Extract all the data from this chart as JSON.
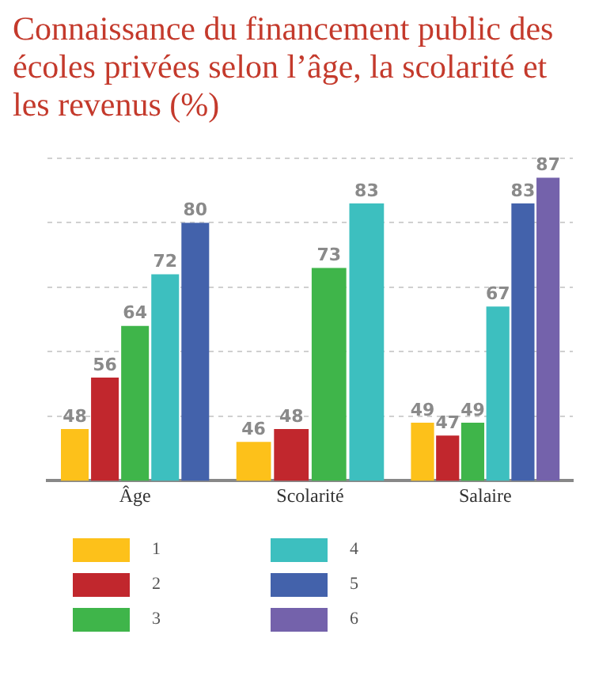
{
  "chart_data": {
    "type": "bar",
    "title": "Connaissance du financement public des écoles privées selon l’âge, la scolarité et les revenus (%)",
    "categories": [
      "Âge",
      "Scolarité",
      "Salaire"
    ],
    "series": [
      {
        "name": "1",
        "color": "#fdc11a",
        "values": [
          48,
          46,
          49
        ]
      },
      {
        "name": "2",
        "color": "#c1272d",
        "values": [
          56,
          48,
          47
        ]
      },
      {
        "name": "3",
        "color": "#3fb54a",
        "values": [
          64,
          73,
          49
        ]
      },
      {
        "name": "4",
        "color": "#3dbfbf",
        "values": [
          72,
          83,
          67
        ]
      },
      {
        "name": "5",
        "color": "#4362ab",
        "values": [
          80,
          null,
          83
        ]
      },
      {
        "name": "6",
        "color": "#7462ab",
        "values": [
          null,
          null,
          87
        ]
      }
    ],
    "ylim": [
      40,
      90
    ],
    "yticks": [
      {
        "value": 40,
        "label": null
      },
      {
        "value": 50,
        "label": null
      },
      {
        "value": 60,
        "label": null
      },
      {
        "value": 70,
        "label": null
      },
      {
        "value": 80,
        "label": null
      },
      {
        "value": 90,
        "label": null
      }
    ],
    "tick_labels": "x",
    "grid": "y",
    "data_labels": true,
    "legend": "bottom"
  }
}
